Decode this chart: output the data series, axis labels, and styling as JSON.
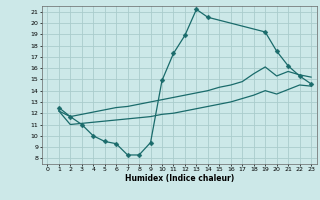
{
  "title": "",
  "xlabel": "Humidex (Indice chaleur)",
  "bg_color": "#cce8e8",
  "grid_color": "#aacccc",
  "line_color": "#1a6b6b",
  "xlim": [
    -0.5,
    23.5
  ],
  "ylim": [
    7.5,
    21.5
  ],
  "xticks": [
    0,
    1,
    2,
    3,
    4,
    5,
    6,
    7,
    8,
    9,
    10,
    11,
    12,
    13,
    14,
    15,
    16,
    17,
    18,
    19,
    20,
    21,
    22,
    23
  ],
  "yticks": [
    8,
    9,
    10,
    11,
    12,
    13,
    14,
    15,
    16,
    17,
    18,
    19,
    20,
    21
  ],
  "curve1_x": [
    1,
    2,
    3,
    4,
    5,
    6,
    7,
    8,
    9,
    10,
    11,
    12,
    13,
    14,
    19,
    20,
    21,
    22,
    23
  ],
  "curve1_y": [
    12.5,
    11.7,
    11.0,
    10.0,
    9.5,
    9.3,
    8.3,
    8.3,
    9.4,
    14.9,
    17.3,
    18.9,
    21.2,
    20.5,
    19.2,
    17.5,
    16.2,
    15.3,
    14.6
  ],
  "curve2_x": [
    1,
    2,
    3,
    4,
    5,
    6,
    7,
    8,
    9,
    10,
    11,
    12,
    13,
    14,
    15,
    16,
    17,
    18,
    19,
    20,
    21,
    22,
    23
  ],
  "curve2_y": [
    12.2,
    11.7,
    11.9,
    12.1,
    12.3,
    12.5,
    12.6,
    12.8,
    13.0,
    13.2,
    13.4,
    13.6,
    13.8,
    14.0,
    14.3,
    14.5,
    14.8,
    15.5,
    16.1,
    15.3,
    15.7,
    15.4,
    15.2
  ],
  "curve3_x": [
    1,
    2,
    3,
    4,
    5,
    6,
    7,
    8,
    9,
    10,
    11,
    12,
    13,
    14,
    15,
    16,
    17,
    18,
    19,
    20,
    21,
    22,
    23
  ],
  "curve3_y": [
    12.2,
    11.0,
    11.1,
    11.2,
    11.3,
    11.4,
    11.5,
    11.6,
    11.7,
    11.9,
    12.0,
    12.2,
    12.4,
    12.6,
    12.8,
    13.0,
    13.3,
    13.6,
    14.0,
    13.7,
    14.1,
    14.5,
    14.4
  ]
}
